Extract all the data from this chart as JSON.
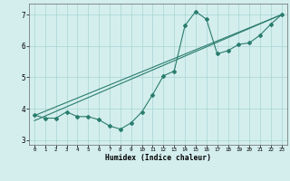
{
  "x": [
    0,
    1,
    2,
    3,
    4,
    5,
    6,
    7,
    8,
    9,
    10,
    11,
    12,
    13,
    14,
    15,
    16,
    17,
    18,
    19,
    20,
    21,
    22,
    23
  ],
  "y_curve": [
    3.8,
    3.7,
    3.7,
    3.9,
    3.75,
    3.75,
    3.65,
    3.45,
    3.35,
    3.55,
    3.9,
    4.45,
    5.05,
    5.2,
    6.65,
    7.1,
    6.85,
    5.75,
    5.85,
    6.05,
    6.1,
    6.35,
    6.7,
    7.0
  ],
  "line1": [
    [
      0,
      3.78
    ],
    [
      23,
      7.0
    ]
  ],
  "line2": [
    [
      0,
      3.62
    ],
    [
      23,
      7.0
    ]
  ],
  "color": "#2a7d6e",
  "bg_color": "#d4eeee",
  "grid_color": "#a8d4d4",
  "xlabel": "Humidex (Indice chaleur)",
  "ylim": [
    2.85,
    7.35
  ],
  "xlim": [
    -0.5,
    23.5
  ],
  "yticks": [
    3,
    4,
    5,
    6,
    7
  ],
  "xticks": [
    0,
    1,
    2,
    3,
    4,
    5,
    6,
    7,
    8,
    9,
    10,
    11,
    12,
    13,
    14,
    15,
    16,
    17,
    18,
    19,
    20,
    21,
    22,
    23
  ],
  "marker": "D",
  "markersize": 2.0,
  "linewidth": 0.8
}
